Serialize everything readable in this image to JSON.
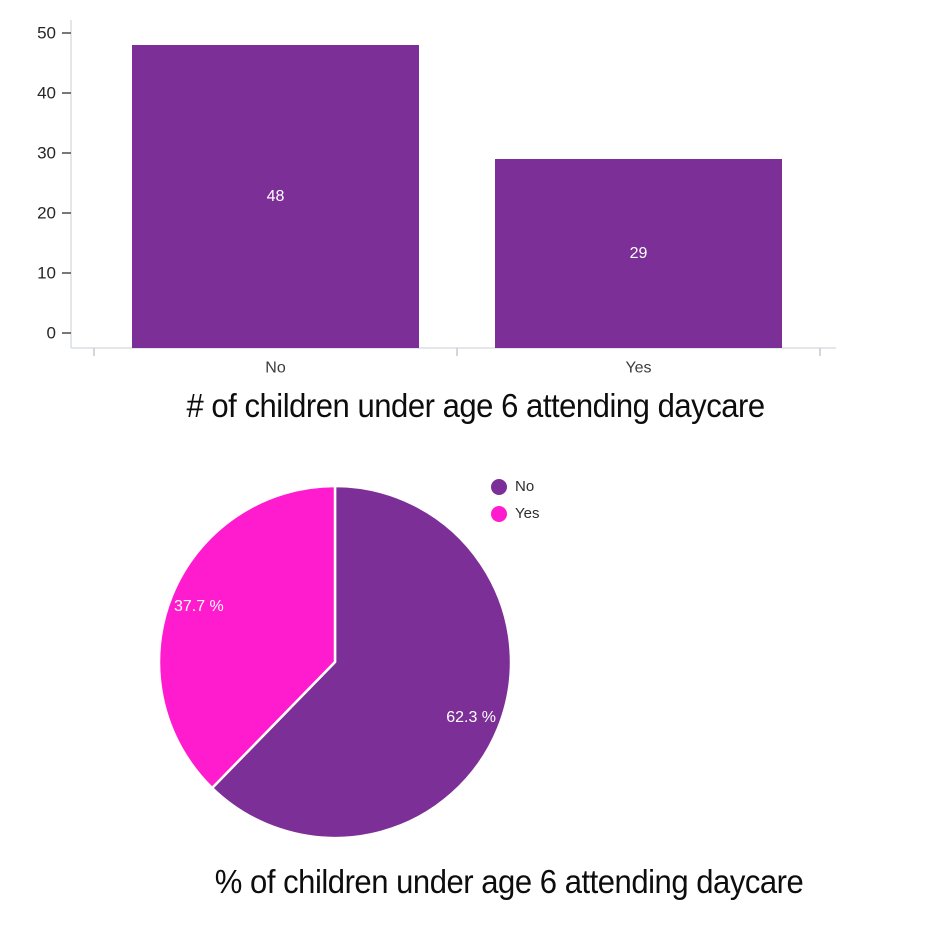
{
  "chart_data": [
    {
      "type": "bar",
      "title": "# of children under age 6 attending daycare",
      "categories": [
        "No",
        "Yes"
      ],
      "values": [
        48,
        29
      ],
      "value_labels": [
        "48",
        "29"
      ],
      "y_ticks": [
        0,
        10,
        20,
        30,
        40,
        50
      ],
      "ylim": [
        0,
        50
      ],
      "xlabel": "",
      "ylabel": "",
      "grid": false,
      "legend_position": "none",
      "bar_color": "#7C2F96",
      "value_label_color": "#FFFFFF"
    },
    {
      "type": "pie",
      "title": "% of children under age 6 attending daycare",
      "labels": [
        "No",
        "Yes"
      ],
      "values": [
        62.3,
        37.7
      ],
      "display_labels": [
        "62.3 %",
        "37.7 %"
      ],
      "colors": [
        "#7C2F96",
        "#FF1BCE"
      ],
      "start_angle_deg": 0,
      "direction": "clockwise",
      "legend_position": "top-right",
      "slice_label_color": "#FFFFFF"
    }
  ],
  "styles": {
    "axis_line_color": "#DCDFE2",
    "x_tick_color": "#C6C9CC",
    "y_tick_color": "#4A4A4A",
    "tick_label_color": "#262626",
    "category_label_color": "#3C3C3C",
    "legend_text_color": "#2E2E2E",
    "title_color": "#0D0D0D"
  }
}
